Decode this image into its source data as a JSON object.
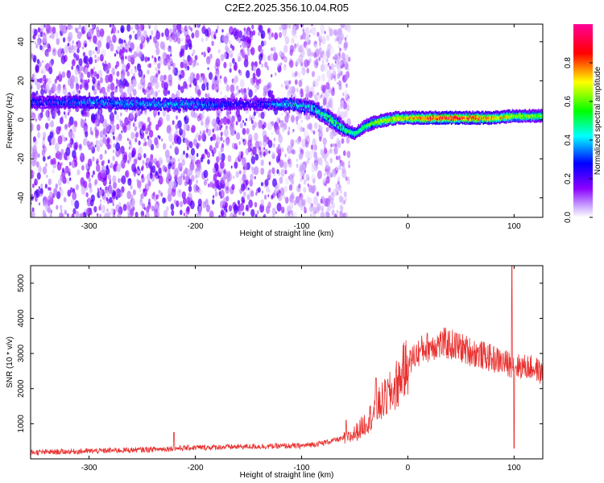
{
  "title": "C2E2.2025.356.10.04.R05",
  "chart_data": [
    {
      "type": "heatmap",
      "xlabel": "Height of straight line (km)",
      "ylabel": "Frequency (Hz)",
      "xlim": [
        -355,
        127
      ],
      "ylim": [
        -50,
        49
      ],
      "x_ticks": [
        -300,
        -200,
        -100,
        0,
        100
      ],
      "y_ticks": [
        -40,
        -20,
        0,
        20,
        40
      ],
      "colorbar": {
        "label": "Normalized spectral amplitude",
        "range": [
          0,
          1
        ],
        "ticks": [
          0.0,
          0.2,
          0.4,
          0.6,
          0.8
        ],
        "tick_labels": [
          "0.0",
          "0.2",
          "0.4",
          "0.6",
          "0.8"
        ],
        "colors": [
          "#ffffff",
          "#8b00ff",
          "#0000ff",
          "#00ffff",
          "#00ff00",
          "#ffff00",
          "#ff0000",
          "#ff0099"
        ]
      },
      "ridge": {
        "x": [
          -350,
          -300,
          -250,
          -200,
          -150,
          -110,
          -90,
          -75,
          -60,
          -50,
          -40,
          -30,
          -20,
          -10,
          0,
          20,
          40,
          60,
          80,
          100,
          125
        ],
        "freq": [
          9,
          9,
          8,
          8,
          8,
          8,
          6,
          1,
          -5,
          -7,
          -3,
          -1,
          0,
          1,
          1,
          1,
          1,
          1,
          1,
          2,
          2
        ],
        "amplitude": [
          0.3,
          0.4,
          0.4,
          0.4,
          0.25,
          0.45,
          0.5,
          0.6,
          0.55,
          0.55,
          0.6,
          0.7,
          0.75,
          0.75,
          0.8,
          0.9,
          0.95,
          0.9,
          0.85,
          0.7,
          0.65
        ]
      },
      "noise_region_end": -65
    },
    {
      "type": "line",
      "xlabel": "Height of straight line (km)",
      "ylabel": "SNR (10 * v/v)",
      "xlim": [
        -355,
        127
      ],
      "ylim": [
        0,
        5500
      ],
      "x_ticks": [
        -300,
        -200,
        -100,
        0,
        100
      ],
      "y_ticks": [
        1000,
        2000,
        3000,
        4000,
        5000
      ],
      "color": "#e8312f",
      "envelope": {
        "x": [
          -355,
          -300,
          -250,
          -200,
          -150,
          -100,
          -80,
          -65,
          -55,
          -45,
          -35,
          -25,
          -15,
          -5,
          5,
          15,
          25,
          35,
          45,
          55,
          65,
          75,
          85,
          95,
          100,
          110,
          120,
          127
        ],
        "y": [
          180,
          220,
          260,
          320,
          350,
          370,
          450,
          560,
          600,
          850,
          1200,
          1600,
          1900,
          2400,
          2900,
          3150,
          3250,
          3280,
          3220,
          3100,
          3000,
          2900,
          2800,
          2700,
          2650,
          2620,
          2580,
          2400
        ]
      },
      "spikes": [
        {
          "x": -220,
          "y": 750
        },
        {
          "x": -58,
          "y": 1100
        },
        {
          "x": -30,
          "y": 2300
        },
        {
          "x": -5,
          "y": 2700
        },
        {
          "x": 98,
          "y": 5500
        },
        {
          "x": 100,
          "y": 300
        }
      ]
    }
  ]
}
